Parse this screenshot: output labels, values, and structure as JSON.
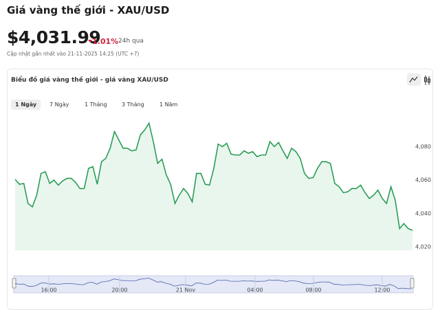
{
  "header": {
    "title": "Giá vàng thế giới - XAU/USD",
    "price": "$4,031.99",
    "change": "1.01%",
    "period": "24h qua",
    "updated": "Cập nhật gần nhất vào 21-11-2025 14:25 (UTC +7)"
  },
  "card": {
    "title": "Biểu đồ giá vàng thế giới - giá vàng XAU/USD",
    "tabs": [
      "1 Ngày",
      "7 Ngày",
      "1 Tháng",
      "3 Tháng",
      "1 Năm"
    ]
  },
  "chart_data": {
    "type": "line",
    "color": "#2a9d55",
    "fill": "#e9f6ee",
    "values": [
      4060.4,
      4057.5,
      4058,
      4046,
      4044,
      4051,
      4064,
      4065,
      4058,
      4060,
      4057,
      4059.5,
      4061,
      4061,
      4058.5,
      4055,
      4055,
      4067,
      4068,
      4057.5,
      4071,
      4073,
      4079,
      4089,
      4084,
      4079,
      4079,
      4077.5,
      4078,
      4087,
      4090,
      4094,
      4083,
      4070,
      4072.5,
      4063,
      4057.5,
      4046,
      4051,
      4055,
      4052,
      4047,
      4064,
      4064,
      4057.5,
      4057,
      4067,
      4081.5,
      4080,
      4082,
      4075.5,
      4075,
      4075,
      4077.5,
      4076,
      4077,
      4074,
      4075,
      4075,
      4083,
      4080,
      4082.5,
      4077.5,
      4073,
      4079,
      4077,
      4073,
      4064,
      4061,
      4061.5,
      4067,
      4071,
      4071,
      4070,
      4058,
      4056,
      4052.5,
      4053,
      4055,
      4055,
      4057,
      4052.5,
      4049,
      4051,
      4054,
      4049,
      4046,
      4056,
      4048,
      4031,
      4034,
      4031,
      4030
    ],
    "ylim": [
      4018,
      4100
    ],
    "yticks": [
      {
        "value": 4020,
        "label": "4,020"
      },
      {
        "value": 4040,
        "label": "4,040"
      },
      {
        "value": 4060,
        "label": "4,060"
      },
      {
        "value": 4080,
        "label": "4,080"
      }
    ],
    "navigator_labels": [
      "16:00",
      "20:00",
      "21 Nov",
      "04:00",
      "08:00",
      "12:00"
    ]
  }
}
